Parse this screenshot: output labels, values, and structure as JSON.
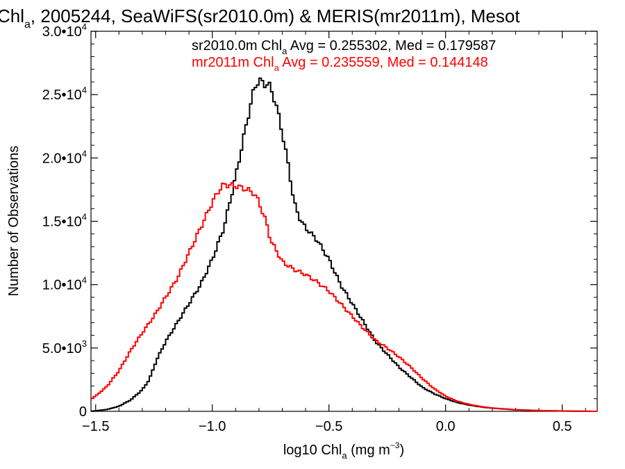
{
  "chart_data": {
    "type": "line",
    "title": {
      "pre": "Chl",
      "sub": "a",
      "post": ", 2005244, SeaWiFS(sr2010.0m) & MERIS(mr2011m), Mesot"
    },
    "xlabel": {
      "pre": "log10 Chl",
      "sub": "a",
      "mid": " (mg m",
      "sup": "−3",
      "post": ")"
    },
    "ylabel": "Number of Observations",
    "xlim": [
      -1.52,
      0.65
    ],
    "ylim": [
      0,
      30000
    ],
    "x_ticks": [
      {
        "value": -1.5,
        "label": "−1.5"
      },
      {
        "value": -1.0,
        "label": "−1.0"
      },
      {
        "value": -0.5,
        "label": "−0.5"
      },
      {
        "value": 0.0,
        "label": "0.0"
      },
      {
        "value": 0.5,
        "label": "0.5"
      }
    ],
    "y_ticks": [
      {
        "value": 0,
        "mant": "0",
        "exp": ""
      },
      {
        "value": 5000,
        "mant": "5.0•10",
        "exp": "3"
      },
      {
        "value": 10000,
        "mant": "1.0•10",
        "exp": "4"
      },
      {
        "value": 15000,
        "mant": "1.5•10",
        "exp": "4"
      },
      {
        "value": 20000,
        "mant": "2.0•10",
        "exp": "4"
      },
      {
        "value": 25000,
        "mant": "2.5•10",
        "exp": "4"
      },
      {
        "value": 30000,
        "mant": "3.0•10",
        "exp": "4"
      }
    ],
    "legend_position": "top-right",
    "legend": [
      {
        "pre": "sr2010.0m Chl",
        "sub": "a",
        "post": " Avg = 0.255302, Med = 0.179587",
        "color": "#000000"
      },
      {
        "pre": "mr2011m Chl",
        "sub": "a",
        "post": " Avg = 0.235559, Med = 0.144148",
        "color": "#ff0000"
      }
    ],
    "series": [
      {
        "color": "#000000",
        "x": [
          -1.52,
          -1.45,
          -1.4,
          -1.35,
          -1.3,
          -1.27,
          -1.24,
          -1.2,
          -1.15,
          -1.1,
          -1.05,
          -1.0,
          -0.95,
          -0.9,
          -0.85,
          -0.82,
          -0.8,
          -0.78,
          -0.76,
          -0.73,
          -0.7,
          -0.67,
          -0.65,
          -0.62,
          -0.6,
          -0.55,
          -0.5,
          -0.45,
          -0.4,
          -0.35,
          -0.3,
          -0.25,
          -0.2,
          -0.15,
          -0.1,
          -0.05,
          0.0,
          0.05,
          0.1,
          0.15,
          0.2,
          0.3,
          0.4,
          0.5,
          0.55,
          0.6,
          0.65
        ],
        "y": [
          0,
          150,
          400,
          900,
          1700,
          2500,
          4000,
          5500,
          7000,
          8500,
          10000,
          12000,
          14500,
          18500,
          23000,
          25500,
          26200,
          25800,
          25900,
          24500,
          22000,
          19000,
          16500,
          15000,
          14500,
          13500,
          12000,
          10000,
          8500,
          7000,
          5500,
          4500,
          3500,
          2700,
          1900,
          1400,
          1000,
          700,
          500,
          350,
          250,
          120,
          60,
          30,
          15,
          5,
          0
        ]
      },
      {
        "color": "#ff0000",
        "x": [
          -1.52,
          -1.5,
          -1.45,
          -1.4,
          -1.35,
          -1.3,
          -1.25,
          -1.2,
          -1.15,
          -1.1,
          -1.05,
          -1.0,
          -0.97,
          -0.95,
          -0.9,
          -0.85,
          -0.82,
          -0.8,
          -0.77,
          -0.75,
          -0.72,
          -0.7,
          -0.65,
          -0.6,
          -0.55,
          -0.5,
          -0.45,
          -0.4,
          -0.35,
          -0.3,
          -0.25,
          -0.2,
          -0.15,
          -0.1,
          -0.05,
          0.0,
          0.05,
          0.1,
          0.15,
          0.2,
          0.3,
          0.4,
          0.5,
          0.55,
          0.6,
          0.65
        ],
        "y": [
          1000,
          1200,
          2000,
          3200,
          4800,
          6200,
          7500,
          9000,
          10500,
          12500,
          14500,
          16500,
          17500,
          17900,
          17800,
          17500,
          17200,
          16500,
          15000,
          13500,
          12500,
          11800,
          11200,
          10800,
          10200,
          9500,
          8500,
          7500,
          6500,
          5600,
          5000,
          4300,
          3500,
          2600,
          1800,
          1200,
          800,
          550,
          380,
          260,
          130,
          60,
          25,
          10,
          5,
          0
        ]
      }
    ]
  }
}
